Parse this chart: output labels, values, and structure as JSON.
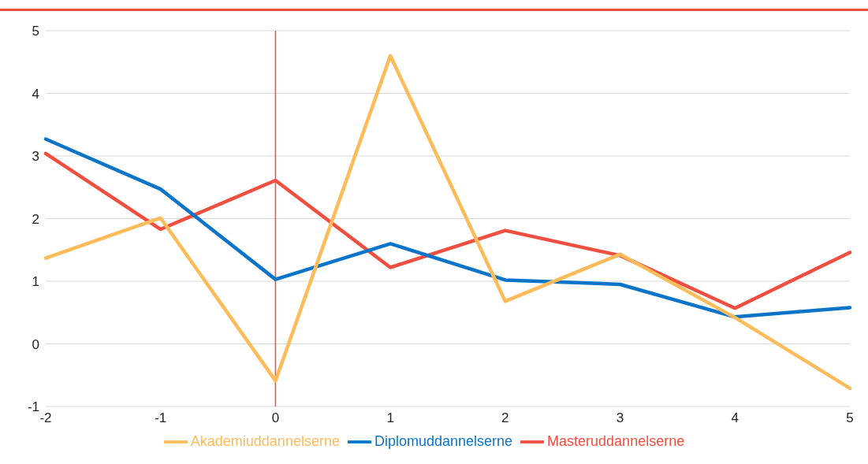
{
  "chart_data": {
    "type": "line",
    "categories": [
      "-2",
      "-1",
      "0",
      "1",
      "2",
      "3",
      "4",
      "5"
    ],
    "series": [
      {
        "name": "Masteruddannelserne",
        "color": "#f04e3e",
        "values": [
          3.04,
          1.83,
          2.61,
          1.22,
          1.81,
          1.41,
          0.57,
          1.46
        ]
      },
      {
        "name": "Diplomuddannelserne",
        "color": "#0a74c9",
        "values": [
          3.27,
          2.47,
          1.03,
          1.6,
          1.02,
          0.95,
          0.43,
          0.58
        ]
      },
      {
        "name": "Akademiuddannelserne",
        "color": "#fdbb5a",
        "values": [
          1.37,
          2.01,
          -0.59,
          4.6,
          0.68,
          1.43,
          0.42,
          -0.71
        ]
      }
    ],
    "ylim": [
      -1,
      5
    ],
    "yticks": [
      -1,
      0,
      1,
      2,
      3,
      4,
      5
    ],
    "grid": "y",
    "legend": "bottom",
    "marker": "none",
    "line_style": "solid",
    "ref_lines": [
      {
        "axis": "x",
        "value": "0",
        "color": "#f04e3e"
      }
    ]
  }
}
